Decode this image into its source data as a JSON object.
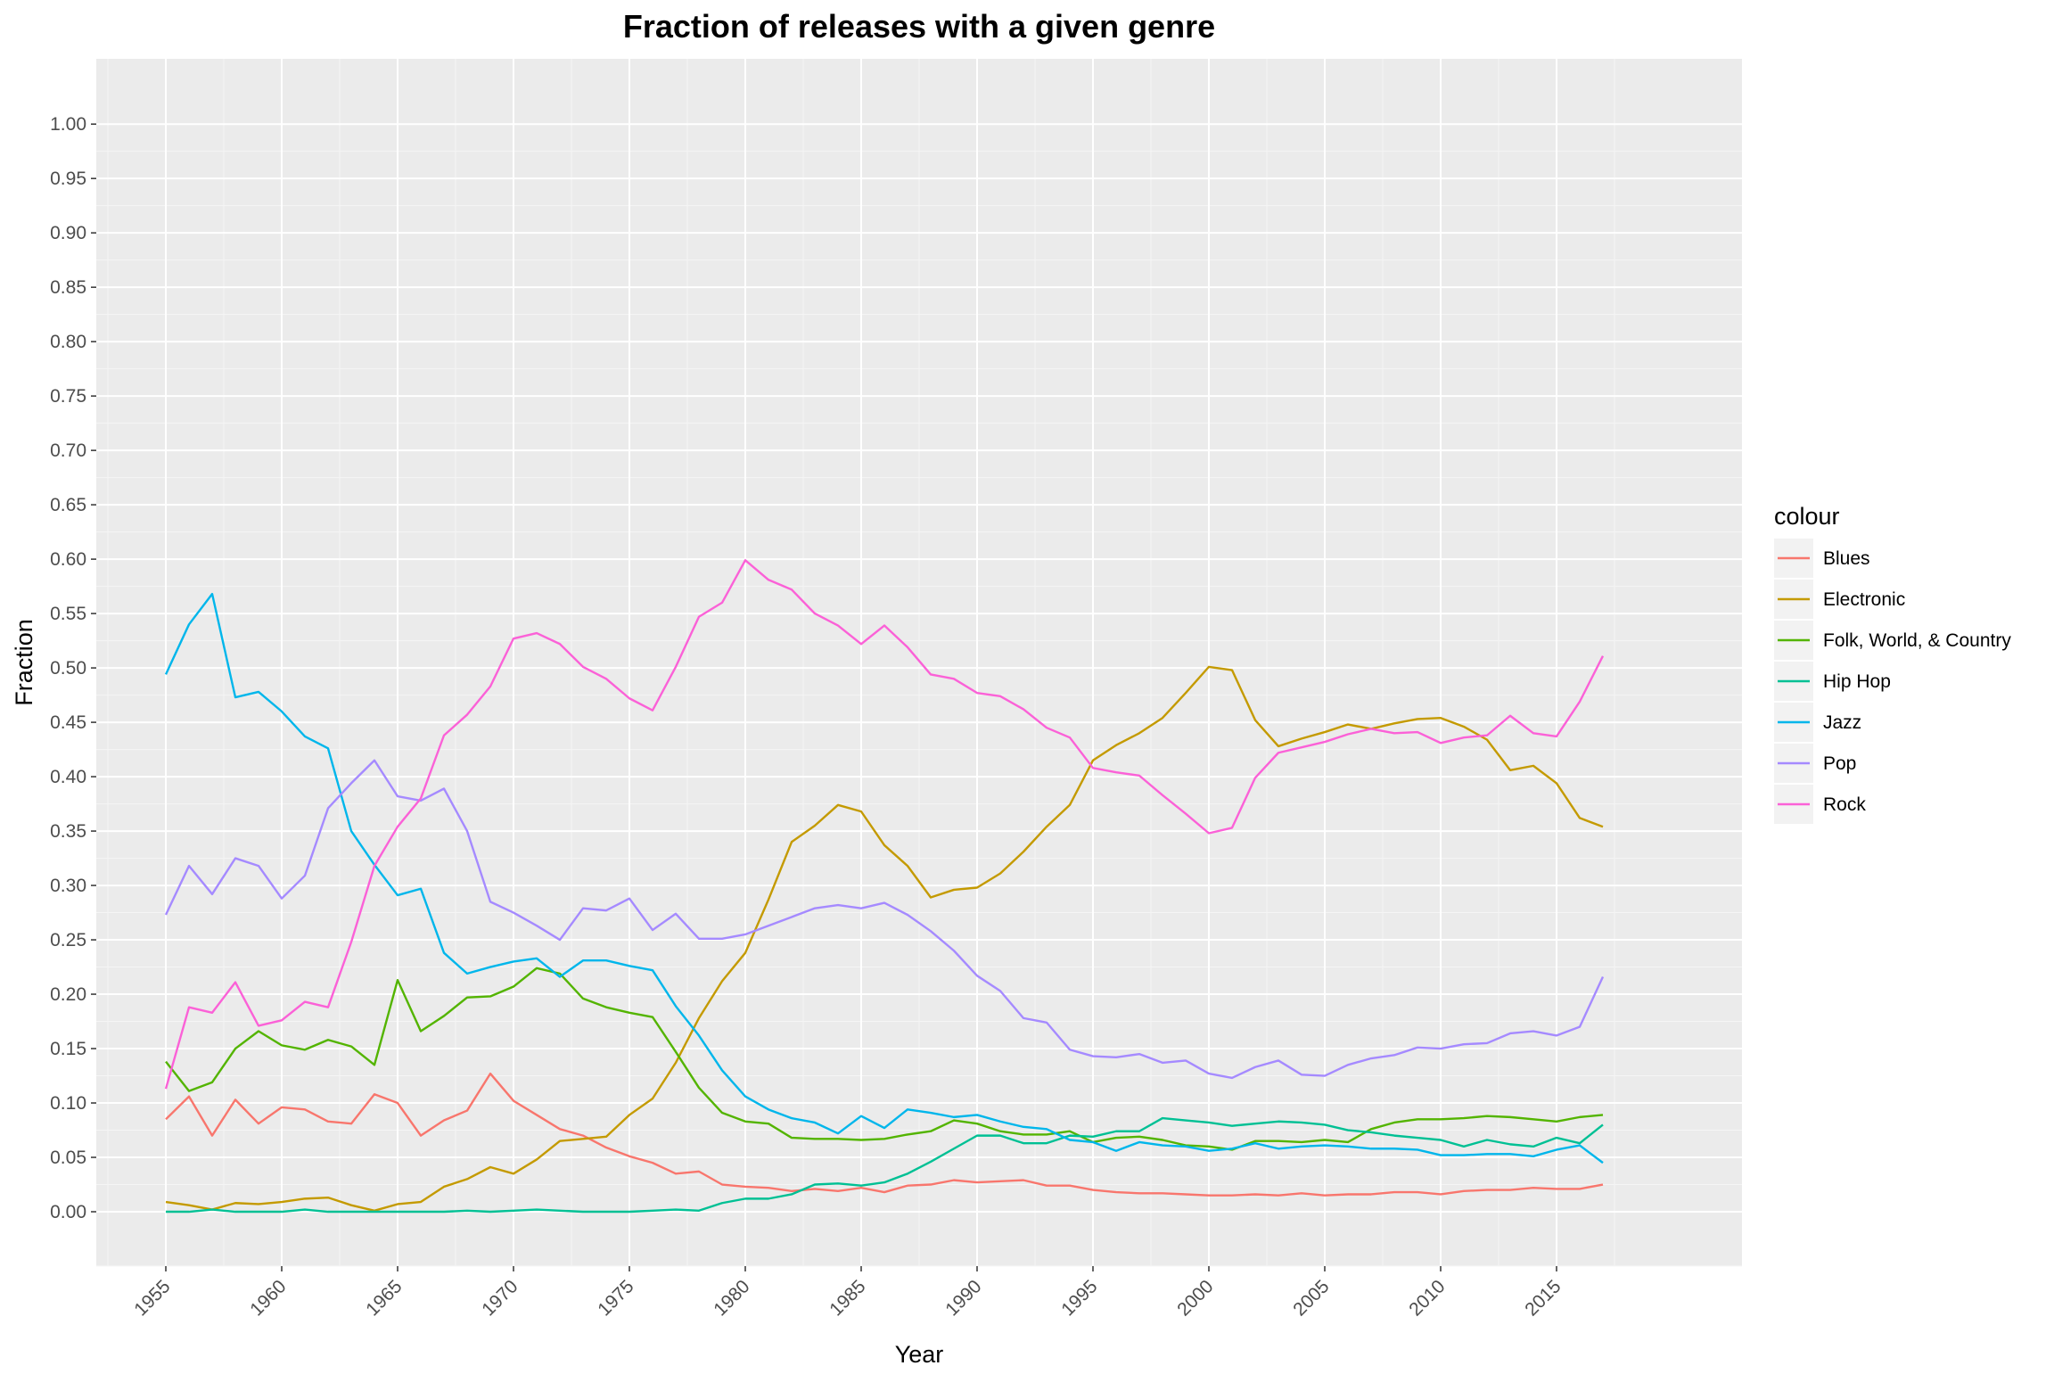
{
  "chart_data": {
    "type": "line",
    "title": "Fraction of releases with a given genre",
    "xlabel": "Year",
    "ylabel": "Fraction",
    "xlim": [
      1952,
      2023
    ],
    "ylim": [
      -0.05,
      1.06
    ],
    "x_ticks": [
      1955,
      1960,
      1965,
      1970,
      1975,
      1980,
      1985,
      1990,
      1995,
      2000,
      2005,
      2010,
      2015
    ],
    "y_ticks": [
      "0.00",
      "0.05",
      "0.10",
      "0.15",
      "0.20",
      "0.25",
      "0.30",
      "0.35",
      "0.40",
      "0.45",
      "0.50",
      "0.55",
      "0.60",
      "0.65",
      "0.70",
      "0.75",
      "0.80",
      "0.85",
      "0.90",
      "0.95",
      "1.00"
    ],
    "grid": true,
    "legend": {
      "title": "colour",
      "position": "right"
    },
    "x": [
      1955,
      1956,
      1957,
      1958,
      1959,
      1960,
      1961,
      1962,
      1963,
      1964,
      1965,
      1966,
      1967,
      1968,
      1969,
      1970,
      1971,
      1972,
      1973,
      1974,
      1975,
      1976,
      1977,
      1978,
      1979,
      1980,
      1981,
      1982,
      1983,
      1984,
      1985,
      1986,
      1987,
      1988,
      1989,
      1990,
      1991,
      1992,
      1993,
      1994,
      1995,
      1996,
      1997,
      1998,
      1999,
      2000,
      2001,
      2002,
      2003,
      2004,
      2005,
      2006,
      2007,
      2008,
      2009,
      2010,
      2011,
      2012,
      2013,
      2014,
      2015,
      2016,
      2017
    ],
    "series": [
      {
        "name": "Blues",
        "color": "#F8766D",
        "values": [
          0.085,
          0.106,
          0.07,
          0.103,
          0.081,
          0.096,
          0.094,
          0.083,
          0.081,
          0.108,
          0.1,
          0.07,
          0.084,
          0.093,
          0.127,
          0.102,
          0.089,
          0.076,
          0.07,
          0.059,
          0.051,
          0.045,
          0.035,
          0.037,
          0.025,
          0.023,
          0.022,
          0.019,
          0.021,
          0.019,
          0.022,
          0.018,
          0.024,
          0.025,
          0.029,
          0.027,
          0.028,
          0.029,
          0.024,
          0.024,
          0.02,
          0.018,
          0.017,
          0.017,
          0.016,
          0.015,
          0.015,
          0.016,
          0.015,
          0.017,
          0.015,
          0.016,
          0.016,
          0.018,
          0.018,
          0.016,
          0.019,
          0.02,
          0.02,
          0.022,
          0.021,
          0.021,
          0.025
        ]
      },
      {
        "name": "Electronic",
        "color": "#C49A00",
        "values": [
          0.009,
          0.006,
          0.002,
          0.008,
          0.007,
          0.009,
          0.012,
          0.013,
          0.006,
          0.001,
          0.007,
          0.009,
          0.023,
          0.03,
          0.041,
          0.035,
          0.048,
          0.065,
          0.067,
          0.069,
          0.089,
          0.104,
          0.137,
          0.178,
          0.212,
          0.238,
          0.287,
          0.34,
          0.355,
          0.374,
          0.368,
          0.337,
          0.318,
          0.289,
          0.296,
          0.298,
          0.311,
          0.331,
          0.354,
          0.374,
          0.415,
          0.429,
          0.44,
          0.454,
          0.477,
          0.501,
          0.498,
          0.452,
          0.428,
          0.435,
          0.441,
          0.448,
          0.444,
          0.449,
          0.453,
          0.454,
          0.446,
          0.434,
          0.406,
          0.41,
          0.394,
          0.362,
          0.354
        ]
      },
      {
        "name": "Folk, World, & Country",
        "color": "#53B400",
        "values": [
          0.138,
          0.111,
          0.119,
          0.15,
          0.166,
          0.153,
          0.149,
          0.158,
          0.152,
          0.135,
          0.213,
          0.166,
          0.18,
          0.197,
          0.198,
          0.207,
          0.224,
          0.219,
          0.196,
          0.188,
          0.183,
          0.179,
          0.147,
          0.114,
          0.091,
          0.083,
          0.081,
          0.068,
          0.067,
          0.067,
          0.066,
          0.067,
          0.071,
          0.074,
          0.084,
          0.081,
          0.074,
          0.071,
          0.071,
          0.074,
          0.064,
          0.068,
          0.069,
          0.066,
          0.061,
          0.06,
          0.057,
          0.065,
          0.065,
          0.064,
          0.066,
          0.064,
          0.076,
          0.082,
          0.085,
          0.085,
          0.086,
          0.088,
          0.087,
          0.085,
          0.083,
          0.087,
          0.089
        ]
      },
      {
        "name": "Hip Hop",
        "color": "#00C094",
        "values": [
          0.0,
          0.0,
          0.002,
          0.0,
          0.0,
          0.0,
          0.002,
          0.0,
          0.0,
          0.0,
          0.0,
          0.0,
          0.0,
          0.001,
          0.0,
          0.001,
          0.002,
          0.001,
          0.0,
          0.0,
          0.0,
          0.001,
          0.002,
          0.001,
          0.008,
          0.012,
          0.012,
          0.016,
          0.025,
          0.026,
          0.024,
          0.027,
          0.035,
          0.046,
          0.058,
          0.07,
          0.07,
          0.063,
          0.063,
          0.07,
          0.069,
          0.074,
          0.074,
          0.086,
          0.084,
          0.082,
          0.079,
          0.081,
          0.083,
          0.082,
          0.08,
          0.075,
          0.073,
          0.07,
          0.068,
          0.066,
          0.06,
          0.066,
          0.062,
          0.06,
          0.068,
          0.063,
          0.08
        ]
      },
      {
        "name": "Jazz",
        "color": "#00B6EB",
        "values": [
          0.494,
          0.54,
          0.568,
          0.473,
          0.478,
          0.46,
          0.437,
          0.426,
          0.35,
          0.319,
          0.291,
          0.297,
          0.238,
          0.219,
          0.225,
          0.23,
          0.233,
          0.216,
          0.231,
          0.231,
          0.226,
          0.222,
          0.189,
          0.162,
          0.13,
          0.106,
          0.094,
          0.086,
          0.082,
          0.072,
          0.088,
          0.077,
          0.094,
          0.091,
          0.087,
          0.089,
          0.083,
          0.078,
          0.076,
          0.066,
          0.064,
          0.056,
          0.064,
          0.061,
          0.06,
          0.056,
          0.058,
          0.063,
          0.058,
          0.06,
          0.061,
          0.06,
          0.058,
          0.058,
          0.057,
          0.052,
          0.052,
          0.053,
          0.053,
          0.051,
          0.057,
          0.061,
          0.045
        ]
      },
      {
        "name": "Pop",
        "color": "#A58AFF",
        "values": [
          0.273,
          0.318,
          0.292,
          0.325,
          0.318,
          0.288,
          0.309,
          0.371,
          0.394,
          0.415,
          0.382,
          0.378,
          0.389,
          0.35,
          0.285,
          0.275,
          0.263,
          0.25,
          0.279,
          0.277,
          0.288,
          0.259,
          0.274,
          0.251,
          0.251,
          0.255,
          0.263,
          0.271,
          0.279,
          0.282,
          0.279,
          0.284,
          0.273,
          0.258,
          0.24,
          0.217,
          0.203,
          0.178,
          0.174,
          0.149,
          0.143,
          0.142,
          0.145,
          0.137,
          0.139,
          0.127,
          0.123,
          0.133,
          0.139,
          0.126,
          0.125,
          0.135,
          0.141,
          0.144,
          0.151,
          0.15,
          0.154,
          0.155,
          0.164,
          0.166,
          0.162,
          0.17,
          0.216
        ]
      },
      {
        "name": "Rock",
        "color": "#FB61D7",
        "values": [
          0.113,
          0.188,
          0.183,
          0.211,
          0.171,
          0.176,
          0.193,
          0.188,
          0.248,
          0.318,
          0.354,
          0.38,
          0.438,
          0.457,
          0.483,
          0.527,
          0.532,
          0.522,
          0.501,
          0.49,
          0.472,
          0.461,
          0.501,
          0.547,
          0.56,
          0.599,
          0.581,
          0.572,
          0.55,
          0.539,
          0.522,
          0.539,
          0.519,
          0.494,
          0.49,
          0.477,
          0.474,
          0.462,
          0.445,
          0.436,
          0.408,
          0.404,
          0.401,
          0.383,
          0.366,
          0.348,
          0.353,
          0.399,
          0.422,
          0.427,
          0.432,
          0.439,
          0.444,
          0.44,
          0.441,
          0.431,
          0.436,
          0.438,
          0.456,
          0.44,
          0.437,
          0.469,
          0.511
        ]
      }
    ]
  }
}
